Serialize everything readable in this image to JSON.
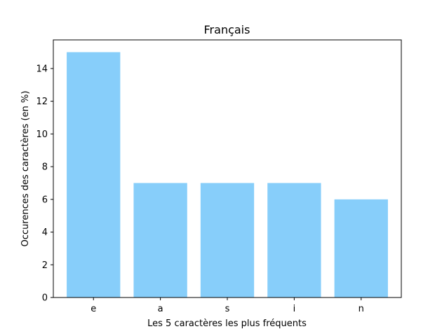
{
  "chart_data": {
    "type": "bar",
    "title": "Français",
    "xlabel": "Les 5 caractères les plus fréquents",
    "ylabel": "Occurences des caractères (en %)",
    "categories": [
      "e",
      "a",
      "s",
      "i",
      "n"
    ],
    "values": [
      15,
      7,
      7,
      7,
      6
    ],
    "ylim": [
      0,
      15.75
    ],
    "yticks": [
      0,
      2,
      4,
      6,
      8,
      10,
      12,
      14
    ],
    "bar_color": "#87cefa",
    "grid": false,
    "legend": "none"
  }
}
